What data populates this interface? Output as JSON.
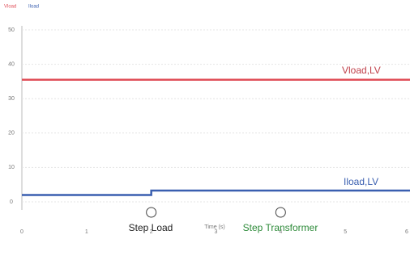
{
  "chart_data": {
    "type": "line",
    "x_label": "Time (s)",
    "x": [
      0,
      2,
      2,
      6
    ],
    "series": [
      {
        "name": "Vload",
        "color": "#e0505a",
        "values": [
          35.5,
          35.5,
          35.5,
          35.5
        ]
      },
      {
        "name": "Iload",
        "color": "#3a5fb0",
        "values": [
          2,
          2,
          3.3,
          3.3
        ]
      }
    ],
    "xlim": [
      0,
      6
    ],
    "xticks": [
      0,
      1,
      2,
      3,
      4,
      5,
      6
    ],
    "ylim": [
      0,
      50
    ],
    "yticks": [
      0,
      10,
      20,
      30,
      40,
      50
    ],
    "grid": true,
    "annotations": [
      {
        "text": "Vload,LV",
        "color": "#c0404a"
      },
      {
        "text": "Iload,LV",
        "color": "#3a5fb0"
      },
      {
        "text": "Step Load",
        "color": "#222222"
      },
      {
        "text": "Step Transformer",
        "color": "#2e8b3a"
      }
    ]
  }
}
